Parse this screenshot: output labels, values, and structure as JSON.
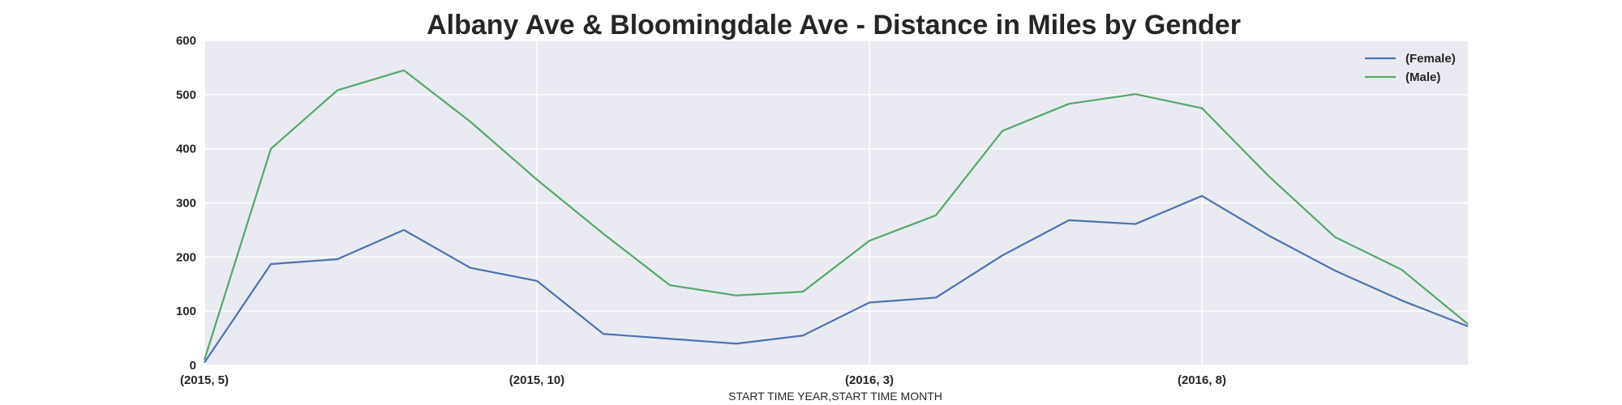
{
  "chart_data": {
    "type": "line",
    "title": "Albany Ave & Bloomingdale Ave - Distance in Miles by Gender",
    "xlabel": "START TIME YEAR,START TIME MONTH",
    "ylabel": "",
    "x": [
      "(2015, 5)",
      "(2015, 6)",
      "(2015, 7)",
      "(2015, 8)",
      "(2015, 9)",
      "(2015, 10)",
      "(2015, 11)",
      "(2015, 12)",
      "(2016, 1)",
      "(2016, 2)",
      "(2016, 3)",
      "(2016, 4)",
      "(2016, 5)",
      "(2016, 6)",
      "(2016, 7)",
      "(2016, 8)",
      "(2016, 9)",
      "(2016, 10)",
      "(2016, 11)",
      "(2016, 12)"
    ],
    "x_tick_labels": [
      "(2015, 5)",
      "(2015, 10)",
      "(2016, 3)",
      "(2016, 8)"
    ],
    "x_tick_indices": [
      0,
      5,
      10,
      15
    ],
    "ylim": [
      0,
      600
    ],
    "y_ticks": [
      0,
      100,
      200,
      300,
      400,
      500,
      600
    ],
    "grid": true,
    "legend_position": "top-right",
    "series": [
      {
        "name": "(Female)",
        "color": "#4c72b0",
        "values": [
          5,
          187,
          196,
          250,
          180,
          156,
          58,
          49,
          40,
          55,
          116,
          125,
          203,
          268,
          261,
          313,
          240,
          175,
          120,
          72
        ]
      },
      {
        "name": "(Male)",
        "color": "#55a868",
        "values": [
          10,
          400,
          508,
          545,
          450,
          343,
          243,
          148,
          129,
          136,
          230,
          277,
          433,
          483,
          501,
          475,
          350,
          237,
          177,
          76
        ]
      }
    ],
    "colors": {
      "plot_background": "#eaeaf2",
      "grid": "#ffffff",
      "text": "#262626"
    }
  }
}
